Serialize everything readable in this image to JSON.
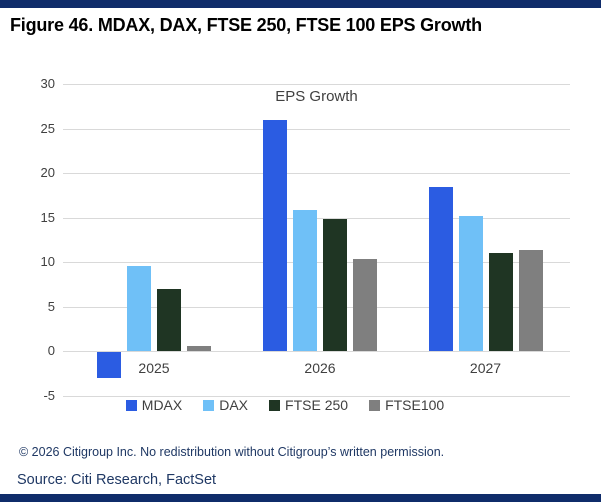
{
  "header": {
    "title": "Figure 46. MDAX, DAX, FTSE 250, FTSE 100 EPS Growth"
  },
  "footer": {
    "copyright": "© 2026 Citigroup Inc. No redistribution without Citigroup’s written permission.",
    "source": "Source: Citi Research, FactSet"
  },
  "colors": {
    "accent_navy": "#0f2c6a",
    "gridline": "#d9d9d9",
    "axis_text": "#404040",
    "footer_text": "#1f3864",
    "mdax_blue": "#2b5ce2",
    "dax_light_blue": "#6fc0f7",
    "ftse250_dark_green": "#1f3523",
    "ftse100_gray": "#7f7f7f"
  },
  "chart_data": {
    "type": "bar",
    "title": "EPS Growth",
    "xlabel": "",
    "ylabel": "",
    "categories": [
      "2025",
      "2026",
      "2027"
    ],
    "series": [
      {
        "name": "MDAX",
        "color": "#2b5ce2",
        "values": [
          -2.9,
          25.9,
          18.4
        ]
      },
      {
        "name": "DAX",
        "color": "#6fc0f7",
        "values": [
          9.5,
          15.8,
          15.2
        ]
      },
      {
        "name": "FTSE 250",
        "color": "#1f3523",
        "values": [
          7.0,
          14.8,
          11.0
        ]
      },
      {
        "name": "FTSE100",
        "color": "#7f7f7f",
        "values": [
          0.6,
          10.3,
          11.3
        ]
      }
    ],
    "yticks": [
      30,
      25,
      20,
      15,
      10,
      5,
      0,
      -5
    ],
    "ylim": [
      -5,
      30
    ],
    "grid": true,
    "legend_position": "bottom"
  }
}
